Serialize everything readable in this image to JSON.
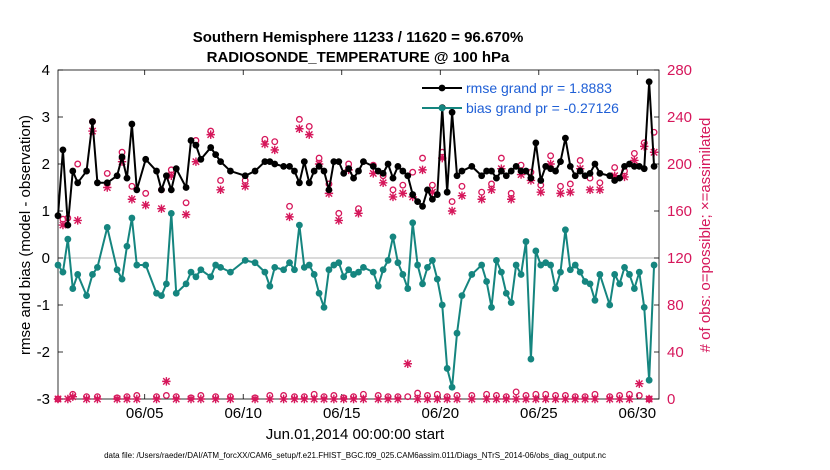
{
  "chart_data": {
    "type": "line",
    "title_line1": "Southern Hemisphere 11233 / 11620 = 96.670%",
    "title_line2": "RADIOSONDE_TEMPERATURE @ 100 hPa",
    "xlabel": "Jun.01,2014 00:00:00 start",
    "ylabel_left": "rmse and bias (model - observation)",
    "ylabel_right": "# of obs: o=possible; ×=assimilated",
    "footer": "data file: /Users/raeder/DAI/ATM_forcXX/CAM6_setup/f.e21.FHIST_BGC.f09_025.CAM6assim.011/Diags_NTrS_2014-06/obs_diag_output.nc",
    "x_ticks": [
      5,
      10,
      15,
      20,
      25,
      30
    ],
    "x_tick_labels": [
      "06/05",
      "06/10",
      "06/15",
      "06/20",
      "06/25",
      "06/30"
    ],
    "xlim": [
      0.6,
      31.1
    ],
    "ylim_left": [
      -3,
      4
    ],
    "y_ticks_left": [
      -3,
      -2,
      -1,
      0,
      1,
      2,
      3,
      4
    ],
    "ylim_right": [
      0,
      280
    ],
    "y_ticks_right": [
      0,
      40,
      80,
      120,
      160,
      200,
      240,
      280
    ],
    "colors": {
      "rmse": "#000000",
      "bias": "#15857f",
      "obs": "#d6175b",
      "zero_line": "#b5b5b5",
      "legend_text": "#1f5fd6"
    },
    "series": [
      {
        "name": "rmse",
        "legend": "rmse grand pr = 1.8883",
        "axis": "left",
        "x": [
          0.6,
          0.85,
          1.1,
          1.35,
          1.6,
          2.05,
          2.35,
          2.6,
          3.1,
          3.6,
          3.85,
          4.1,
          4.35,
          4.6,
          5.05,
          5.6,
          5.85,
          6.1,
          6.35,
          6.6,
          7.1,
          7.35,
          7.6,
          7.85,
          8.35,
          8.6,
          8.85,
          9.35,
          10.1,
          10.6,
          11.1,
          11.35,
          11.6,
          12.05,
          12.35,
          12.6,
          12.85,
          13.1,
          13.35,
          13.6,
          13.85,
          14.1,
          14.35,
          14.6,
          14.85,
          15.1,
          15.35,
          15.6,
          15.85,
          16.1,
          16.6,
          16.85,
          17.1,
          17.35,
          17.6,
          17.85,
          18.1,
          18.35,
          18.6,
          18.85,
          19.1,
          19.35,
          19.6,
          19.85,
          20.1,
          20.35,
          20.6,
          20.85,
          21.1,
          21.6,
          22.1,
          22.35,
          22.6,
          22.85,
          23.1,
          23.35,
          23.6,
          23.85,
          24.1,
          24.35,
          24.6,
          24.85,
          25.1,
          25.35,
          25.6,
          25.85,
          26.1,
          26.35,
          26.6,
          26.85,
          27.1,
          27.35,
          27.6,
          27.85,
          28.1,
          28.6,
          28.85,
          29.1,
          29.35,
          29.6,
          29.85,
          30.1,
          30.35,
          30.6,
          30.85
        ],
        "values": [
          0.9,
          2.3,
          0.7,
          1.85,
          1.6,
          1.85,
          2.9,
          1.6,
          1.6,
          1.75,
          2.15,
          1.7,
          2.85,
          1.45,
          2.1,
          1.85,
          1.45,
          1.75,
          1.45,
          1.9,
          1.5,
          2.5,
          2.4,
          2.1,
          2.35,
          2.2,
          2.05,
          1.85,
          1.75,
          1.85,
          2.05,
          2.05,
          2.0,
          1.95,
          1.95,
          1.85,
          1.6,
          2.05,
          1.6,
          1.85,
          1.95,
          1.85,
          1.45,
          2.05,
          2.05,
          1.8,
          1.9,
          1.7,
          1.85,
          2.05,
          1.95,
          1.85,
          1.8,
          2.0,
          1.7,
          1.95,
          1.85,
          1.75,
          1.35,
          1.2,
          1.1,
          1.45,
          1.25,
          1.35,
          3.2,
          1.4,
          3.1,
          1.75,
          1.85,
          1.95,
          1.75,
          1.85,
          1.85,
          1.7,
          1.85,
          1.75,
          1.85,
          1.95,
          1.85,
          1.85,
          1.7,
          2.45,
          1.65,
          1.95,
          1.9,
          1.85,
          2.05,
          2.55,
          1.95,
          1.75,
          1.85,
          1.75,
          1.8,
          2.0,
          1.8,
          1.75,
          1.65,
          1.7,
          1.95,
          2.0,
          1.95,
          1.95,
          1.9,
          3.75,
          1.95
        ]
      },
      {
        "name": "bias",
        "legend": "bias grand pr = -0.27126",
        "axis": "left",
        "x": [
          0.6,
          0.85,
          1.1,
          1.35,
          1.6,
          2.05,
          2.35,
          2.6,
          3.1,
          3.6,
          3.85,
          4.1,
          4.35,
          4.6,
          5.05,
          5.6,
          5.85,
          6.1,
          6.35,
          6.6,
          7.1,
          7.35,
          7.6,
          7.85,
          8.35,
          8.6,
          8.85,
          9.35,
          10.1,
          10.6,
          11.1,
          11.35,
          11.6,
          12.05,
          12.35,
          12.6,
          12.85,
          13.1,
          13.35,
          13.6,
          13.85,
          14.1,
          14.35,
          14.6,
          14.85,
          15.1,
          15.35,
          15.6,
          15.85,
          16.1,
          16.6,
          16.85,
          17.1,
          17.35,
          17.6,
          17.85,
          18.1,
          18.35,
          18.6,
          18.85,
          19.1,
          19.35,
          19.6,
          19.85,
          20.1,
          20.35,
          20.6,
          20.85,
          21.1,
          21.6,
          22.1,
          22.35,
          22.6,
          22.85,
          23.1,
          23.35,
          23.6,
          23.85,
          24.1,
          24.35,
          24.6,
          24.85,
          25.1,
          25.35,
          25.6,
          25.85,
          26.1,
          26.35,
          26.6,
          26.85,
          27.1,
          27.35,
          27.6,
          27.85,
          28.1,
          28.6,
          28.85,
          29.1,
          29.35,
          29.6,
          29.85,
          30.1,
          30.35,
          30.6,
          30.85
        ],
        "values": [
          -0.15,
          -0.3,
          0.4,
          -0.65,
          -0.35,
          -0.8,
          -0.35,
          -0.2,
          0.65,
          -0.25,
          -0.45,
          0.25,
          0.85,
          -0.15,
          -0.15,
          -0.75,
          -0.8,
          -0.55,
          0.95,
          -0.75,
          -0.55,
          -0.3,
          -0.4,
          -0.25,
          -0.4,
          -0.15,
          -0.2,
          -0.3,
          -0.05,
          -0.1,
          -0.3,
          -0.6,
          -0.2,
          -0.25,
          -0.1,
          -0.25,
          0.7,
          -0.2,
          -0.15,
          -0.35,
          -0.75,
          -1.05,
          -0.25,
          -0.15,
          -0.1,
          -0.4,
          -0.25,
          -0.35,
          -0.3,
          -0.2,
          -0.3,
          -0.6,
          -0.25,
          -0.05,
          0.45,
          -0.1,
          -0.35,
          -0.65,
          0.75,
          -0.15,
          -0.55,
          -0.2,
          -0.05,
          -0.45,
          -1.0,
          -2.35,
          -2.75,
          -1.6,
          -0.8,
          -0.35,
          -0.15,
          -0.5,
          -1.05,
          -0.05,
          -0.3,
          -0.75,
          -0.95,
          -0.15,
          -0.35,
          0.35,
          -2.15,
          0.15,
          -0.15,
          -0.1,
          -0.15,
          -0.65,
          -0.3,
          0.6,
          -0.25,
          -0.15,
          -0.3,
          -0.5,
          -0.55,
          -0.9,
          -0.35,
          -1.0,
          -0.35,
          -0.55,
          -0.2,
          -0.35,
          -0.65,
          -0.3,
          -1.05,
          -2.6,
          -0.15
        ]
      },
      {
        "name": "possible",
        "legend": "",
        "axis": "right",
        "marker": "o",
        "x": [
          0.6,
          0.85,
          1.1,
          1.35,
          1.6,
          2.05,
          2.35,
          2.6,
          3.1,
          3.6,
          3.85,
          4.1,
          4.35,
          4.6,
          5.05,
          5.6,
          5.85,
          6.1,
          6.35,
          6.6,
          7.1,
          7.35,
          7.6,
          7.85,
          8.35,
          8.6,
          8.85,
          9.35,
          10.1,
          10.6,
          11.1,
          11.35,
          11.6,
          12.05,
          12.35,
          12.6,
          12.85,
          13.1,
          13.35,
          13.6,
          13.85,
          14.1,
          14.35,
          14.6,
          14.85,
          15.1,
          15.35,
          15.6,
          15.85,
          16.1,
          16.6,
          16.85,
          17.1,
          17.35,
          17.6,
          17.85,
          18.1,
          18.35,
          18.6,
          18.85,
          19.1,
          19.35,
          19.6,
          19.85,
          20.1,
          20.35,
          20.6,
          20.85,
          21.1,
          21.6,
          22.1,
          22.35,
          22.6,
          22.85,
          23.1,
          23.35,
          23.6,
          23.85,
          24.1,
          24.35,
          24.6,
          24.85,
          25.1,
          25.35,
          25.6,
          25.85,
          26.1,
          26.35,
          26.6,
          26.85,
          27.1,
          27.35,
          27.6,
          27.85,
          28.1,
          28.6,
          28.85,
          29.1,
          29.35,
          29.6,
          29.85,
          30.1,
          30.35,
          30.6,
          30.85
        ],
        "values": [
          0,
          153,
          154,
          4,
          200,
          2,
          236,
          2,
          192,
          1,
          210,
          2,
          181,
          3,
          175,
          2,
          178,
          3,
          195,
          2,
          167,
          1,
          220,
          3,
          228,
          2,
          186,
          2,
          186,
          1,
          221,
          3,
          219,
          3,
          164,
          2,
          238,
          2,
          232,
          4,
          205,
          2,
          183,
          3,
          158,
          1,
          200,
          2,
          162,
          4,
          199,
          3,
          190,
          2,
          178,
          2,
          182,
          2,
          193,
          5,
          205,
          3,
          182,
          4,
          210,
          2,
          168,
          3,
          181,
          3,
          176,
          4,
          183,
          3,
          205,
          2,
          175,
          6,
          199,
          3,
          193,
          4,
          182,
          4,
          207,
          3,
          181,
          3,
          183,
          2,
          203,
          2,
          188,
          4,
          184,
          2,
          197,
          3,
          194,
          4,
          209,
          3,
          218,
          0,
          227
        ]
      },
      {
        "name": "assimilated",
        "legend": "",
        "axis": "right",
        "marker": "x",
        "x": [
          0.6,
          0.85,
          1.1,
          1.35,
          1.6,
          2.05,
          2.35,
          2.6,
          3.1,
          3.6,
          3.85,
          4.1,
          4.35,
          4.6,
          5.05,
          5.6,
          5.85,
          6.1,
          6.35,
          6.6,
          7.1,
          7.35,
          7.6,
          7.85,
          8.35,
          8.6,
          8.85,
          9.35,
          10.1,
          10.6,
          11.1,
          11.35,
          11.6,
          12.05,
          12.35,
          12.6,
          12.85,
          13.1,
          13.35,
          13.6,
          13.85,
          14.1,
          14.35,
          14.6,
          14.85,
          15.1,
          15.35,
          15.6,
          15.85,
          16.1,
          16.6,
          16.85,
          17.1,
          17.35,
          17.6,
          17.85,
          18.1,
          18.35,
          18.6,
          18.85,
          19.1,
          19.35,
          19.6,
          19.85,
          20.1,
          20.35,
          20.6,
          20.85,
          21.1,
          21.6,
          22.1,
          22.35,
          22.6,
          22.85,
          23.1,
          23.35,
          23.6,
          23.85,
          24.1,
          24.35,
          24.6,
          24.85,
          25.1,
          25.35,
          25.6,
          25.85,
          26.1,
          26.35,
          26.6,
          26.85,
          27.1,
          27.35,
          27.6,
          27.85,
          28.1,
          28.6,
          28.85,
          29.1,
          29.35,
          29.6,
          29.85,
          30.1,
          30.35,
          30.6,
          30.85
        ],
        "values": [
          0,
          148,
          0,
          2,
          152,
          0,
          228,
          0,
          180,
          0,
          202,
          0,
          170,
          0,
          165,
          0,
          162,
          15,
          190,
          0,
          157,
          0,
          202,
          0,
          225,
          0,
          178,
          0,
          181,
          0,
          217,
          0,
          212,
          0,
          155,
          0,
          230,
          0,
          225,
          0,
          200,
          0,
          175,
          0,
          152,
          0,
          195,
          0,
          158,
          0,
          192,
          0,
          184,
          0,
          172,
          0,
          175,
          30,
          172,
          0,
          195,
          0,
          176,
          0,
          205,
          0,
          160,
          0,
          173,
          0,
          170,
          0,
          178,
          0,
          196,
          0,
          170,
          0,
          191,
          0,
          186,
          0,
          176,
          0,
          200,
          0,
          175,
          0,
          176,
          0,
          196,
          0,
          178,
          0,
          178,
          0,
          190,
          0,
          189,
          0,
          203,
          13,
          215,
          0,
          210
        ]
      }
    ],
    "legend_position": "top-right"
  }
}
